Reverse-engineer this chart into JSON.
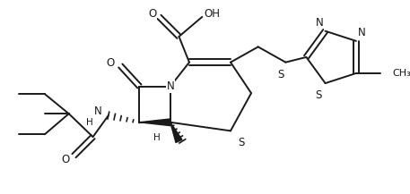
{
  "background_color": "#ffffff",
  "line_color": "#1a1a1a",
  "line_width": 1.4,
  "font_size": 8.5,
  "fig_width": 4.57,
  "fig_height": 2.17,
  "dpi": 100,
  "xlim": [
    0,
    457
  ],
  "ylim": [
    0,
    217
  ]
}
